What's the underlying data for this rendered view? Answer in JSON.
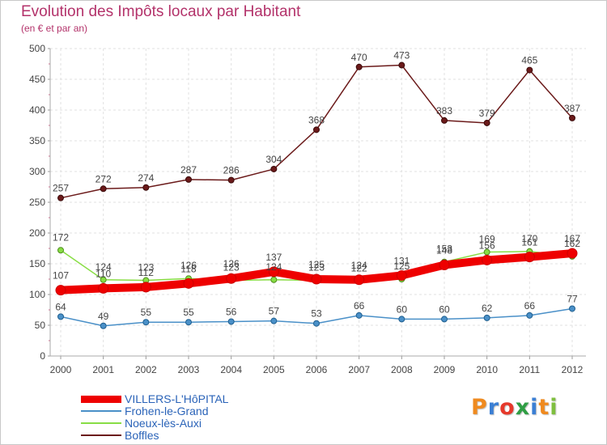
{
  "title": "Evolution des Impôts locaux par Habitant",
  "subtitle": "(en € et par an)",
  "logo": {
    "letters": [
      "P",
      "r",
      "o",
      "x",
      "i",
      "t",
      "i"
    ],
    "colors": [
      "#ef8a1f",
      "#3b7fd4",
      "#e6392b",
      "#2f9e44",
      "#3b7fd4",
      "#ef8a1f",
      "#7fbf3f"
    ]
  },
  "chart_data": {
    "type": "line",
    "title": "Evolution des Impôts locaux par Habitant",
    "subtitle": "(en € et par an)",
    "categories": [
      "2000",
      "2001",
      "2002",
      "2003",
      "2004",
      "2005",
      "2006",
      "2007",
      "2008",
      "2009",
      "2010",
      "2011",
      "2012"
    ],
    "yticks": [
      "0",
      "50",
      "100",
      "150",
      "200",
      "250",
      "300",
      "350",
      "400",
      "450",
      "500"
    ],
    "ylim": [
      0,
      500
    ],
    "grid": true,
    "series": [
      {
        "name": "VILLERS-L'HôPITAL",
        "color": "#ee0000",
        "values": [
          107,
          110,
          112,
          118,
          126,
          137,
          125,
          124,
          131,
          148,
          156,
          161,
          167
        ],
        "labels": [
          "107",
          "110",
          "112",
          "118",
          "126",
          "137",
          "125",
          "124",
          "131",
          "148",
          "156",
          "161",
          "167"
        ]
      },
      {
        "name": "Frohen-le-Grand",
        "color": "#4a90c8",
        "values": [
          64,
          49,
          55,
          55,
          56,
          57,
          53,
          66,
          60,
          60,
          62,
          66,
          77
        ],
        "labels": [
          "64",
          "49",
          "55",
          "55",
          "56",
          "57",
          "53",
          "66",
          "60",
          "60",
          "62",
          "66",
          "77"
        ]
      },
      {
        "name": "Noeux-lès-Auxi",
        "color": "#88dd44",
        "values": [
          172,
          124,
          123,
          126,
          123,
          124,
          123,
          122,
          125,
          153,
          169,
          170,
          162
        ],
        "labels": [
          "172",
          "124",
          "123",
          "126",
          "123",
          "124",
          "123",
          "122",
          "125",
          "153",
          "169",
          "170",
          "162"
        ]
      },
      {
        "name": "Boffles",
        "color": "#6b1a1a",
        "values": [
          257,
          272,
          274,
          287,
          286,
          304,
          368,
          470,
          473,
          383,
          379,
          465,
          387
        ],
        "labels": [
          "257",
          "272",
          "274",
          "287",
          "286",
          "304",
          "368",
          "470",
          "473",
          "383",
          "379",
          "465",
          "387"
        ]
      }
    ]
  }
}
